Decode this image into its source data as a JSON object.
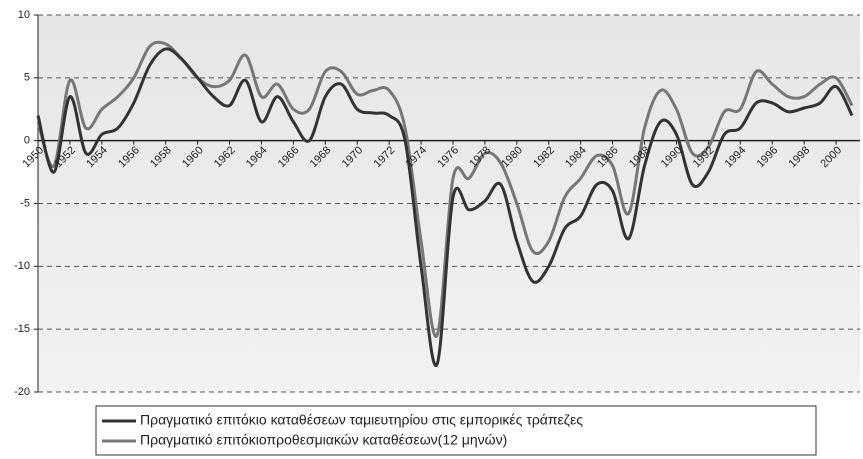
{
  "chart_data": {
    "type": "line",
    "x": [
      1950,
      1951,
      1952,
      1953,
      1954,
      1955,
      1956,
      1957,
      1958,
      1959,
      1960,
      1961,
      1962,
      1963,
      1964,
      1965,
      1966,
      1967,
      1968,
      1969,
      1970,
      1971,
      1972,
      1973,
      1974,
      1975,
      1976,
      1977,
      1978,
      1979,
      1980,
      1981,
      1982,
      1983,
      1984,
      1985,
      1986,
      1987,
      1988,
      1989,
      1990,
      1991,
      1992,
      1993,
      1994,
      1995,
      1996,
      1997,
      1998,
      1999,
      2000,
      2001
    ],
    "series": [
      {
        "name": "Πραγματικό επιτόκιο καταθέσεων ταμιευτηρίου στις εμπορικές τράπεζες",
        "color": "#333333",
        "values": [
          2,
          -2.5,
          3.5,
          -1,
          0.5,
          1,
          3,
          6,
          7.3,
          6.5,
          5,
          3.5,
          2.8,
          4.8,
          1.5,
          3.5,
          1.5,
          0,
          3.5,
          4.5,
          2.5,
          2.2,
          2,
          0,
          -10,
          -17.8,
          -4.5,
          -5.5,
          -4.8,
          -3.5,
          -8,
          -11.2,
          -10,
          -7,
          -6,
          -3.5,
          -4,
          -7.8,
          -2,
          1.5,
          0.5,
          -3.5,
          -2.5,
          0.5,
          1,
          3,
          3,
          2.3,
          2.6,
          3,
          4.3,
          2
        ]
      },
      {
        "name": "Πραγματικό επιτόκιοπροθεσμιακών καταθέσεων(12 μηνών)",
        "color": "#777777",
        "values": [
          1.5,
          -2,
          4.8,
          1,
          2.5,
          3.5,
          5,
          7.5,
          7.7,
          6.5,
          5,
          4.3,
          4.8,
          6.8,
          3.5,
          4.5,
          2.5,
          2.5,
          5.5,
          5.5,
          3.7,
          4,
          4,
          1,
          -8,
          -15.5,
          -3,
          -3,
          -1,
          -1.8,
          -5,
          -8.8,
          -8,
          -4.5,
          -3,
          -1.2,
          -2,
          -5.8,
          1,
          4,
          2.5,
          -1,
          -0.5,
          2.3,
          2.5,
          5.5,
          4.5,
          3.5,
          3.5,
          4.5,
          5,
          2.8
        ]
      }
    ],
    "xlim": [
      1950,
      2001.5
    ],
    "xticks": [
      1950,
      1952,
      1954,
      1956,
      1958,
      1960,
      1962,
      1964,
      1966,
      1968,
      1970,
      1972,
      1974,
      1976,
      1978,
      1980,
      1982,
      1984,
      1986,
      1988,
      1990,
      1992,
      1994,
      1996,
      1998,
      2000
    ],
    "ylim": [
      -20,
      10
    ],
    "yticks": [
      10,
      5,
      0,
      -5,
      -10,
      -15,
      -20
    ],
    "grid": true
  }
}
